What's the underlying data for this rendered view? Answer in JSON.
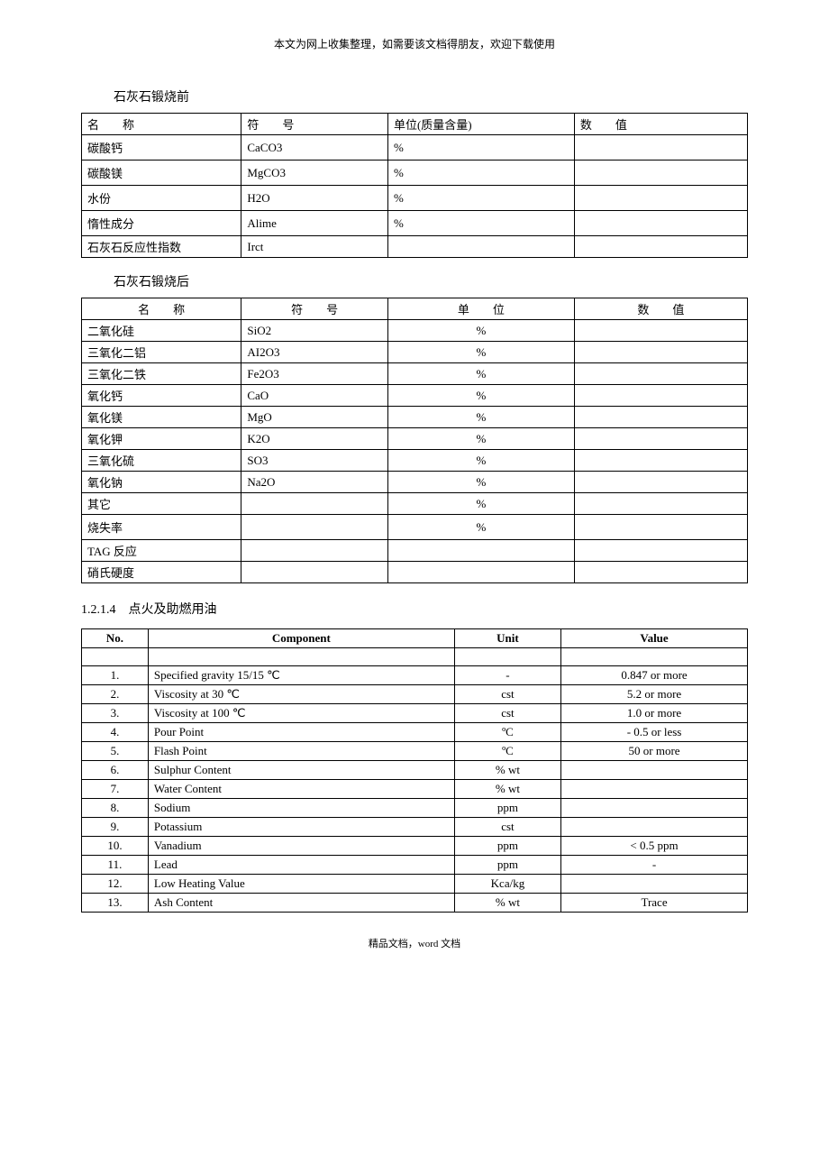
{
  "header_note": "本文为网上收集整理，如需要该文档得朋友，欢迎下载使用",
  "footer_note": "精品文档，word 文档",
  "section1": {
    "title": "石灰石锻烧前",
    "headers": {
      "name": "名　　称",
      "symbol": "符　　号",
      "unit": "单位(质量含量)",
      "value": "数　　值"
    },
    "rows": [
      {
        "name": "碳酸钙",
        "symbol": "CaCO3",
        "unit": "%",
        "value": ""
      },
      {
        "name": "碳酸镁",
        "symbol": "MgCO3",
        "unit": "%",
        "value": ""
      },
      {
        "name": "水份",
        "symbol": "H2O",
        "unit": "%",
        "value": ""
      },
      {
        "name": "惰性成分",
        "symbol": "Alime",
        "unit": "%",
        "value": ""
      },
      {
        "name": "石灰石反应性指数",
        "symbol": "Irct",
        "unit": "",
        "value": ""
      }
    ]
  },
  "section2": {
    "title": "石灰石锻烧后",
    "headers": {
      "name": "名　　称",
      "symbol": "符　　号",
      "unit": "单　　位",
      "value": "数　　值"
    },
    "rows": [
      {
        "name": "二氧化硅",
        "symbol": "SiO2",
        "unit": "%",
        "value": ""
      },
      {
        "name": "三氧化二铝",
        "symbol": "AI2O3",
        "unit": "%",
        "value": ""
      },
      {
        "name": "三氧化二铁",
        "symbol": "Fe2O3",
        "unit": "%",
        "value": ""
      },
      {
        "name": "氧化钙",
        "symbol": "CaO",
        "unit": "%",
        "value": ""
      },
      {
        "name": "氧化镁",
        "symbol": "MgO",
        "unit": "%",
        "value": ""
      },
      {
        "name": "氧化钾",
        "symbol": "K2O",
        "unit": "%",
        "value": ""
      },
      {
        "name": "三氧化硫",
        "symbol": "SO3",
        "unit": "%",
        "value": ""
      },
      {
        "name": "氧化钠",
        "symbol": "Na2O",
        "unit": "%",
        "value": ""
      },
      {
        "name": "其它",
        "symbol": "",
        "unit": "%",
        "value": ""
      },
      {
        "name": "烧失率",
        "symbol": "",
        "unit": "%",
        "value": ""
      },
      {
        "name": "TAG 反应",
        "symbol": "",
        "unit": "",
        "value": ""
      },
      {
        "name": "硝氏硬度",
        "symbol": "",
        "unit": "",
        "value": ""
      }
    ]
  },
  "section3": {
    "heading": "1.2.1.4　点火及助燃用油",
    "headers": {
      "no": "No.",
      "component": "Component",
      "unit": "Unit",
      "value": "Value"
    },
    "rows": [
      {
        "no": "",
        "component": "",
        "unit": "",
        "value": ""
      },
      {
        "no": "1.",
        "component": "Specified gravity 15/15 ℃",
        "unit": "-",
        "value": "0.847 or more"
      },
      {
        "no": "2.",
        "component": "Viscosity at 30 ℃",
        "unit": "cst",
        "value": "5.2 or more"
      },
      {
        "no": "3.",
        "component": "Viscosity at 100 ℃",
        "unit": "cst",
        "value": "1.0 or more"
      },
      {
        "no": "4.",
        "component": "Pour Point",
        "unit": "ºC",
        "value": "- 0.5 or less"
      },
      {
        "no": "5.",
        "component": "Flash Point",
        "unit": "ºC",
        "value": "50 or more"
      },
      {
        "no": "6.",
        "component": "Sulphur Content",
        "unit": "% wt",
        "value": ""
      },
      {
        "no": "7.",
        "component": "Water Content",
        "unit": "% wt",
        "value": ""
      },
      {
        "no": "8.",
        "component": "Sodium",
        "unit": "ppm",
        "value": ""
      },
      {
        "no": "9.",
        "component": "Potassium",
        "unit": "cst",
        "value": ""
      },
      {
        "no": "10.",
        "component": "Vanadium",
        "unit": "ppm",
        "value": "< 0.5 ppm"
      },
      {
        "no": "11.",
        "component": "Lead",
        "unit": "ppm",
        "value": "-"
      },
      {
        "no": "12.",
        "component": "Low Heating Value",
        "unit": "Kca/kg",
        "value": ""
      },
      {
        "no": "13.",
        "component": "Ash Content",
        "unit": "% wt",
        "value": "Trace"
      }
    ]
  }
}
